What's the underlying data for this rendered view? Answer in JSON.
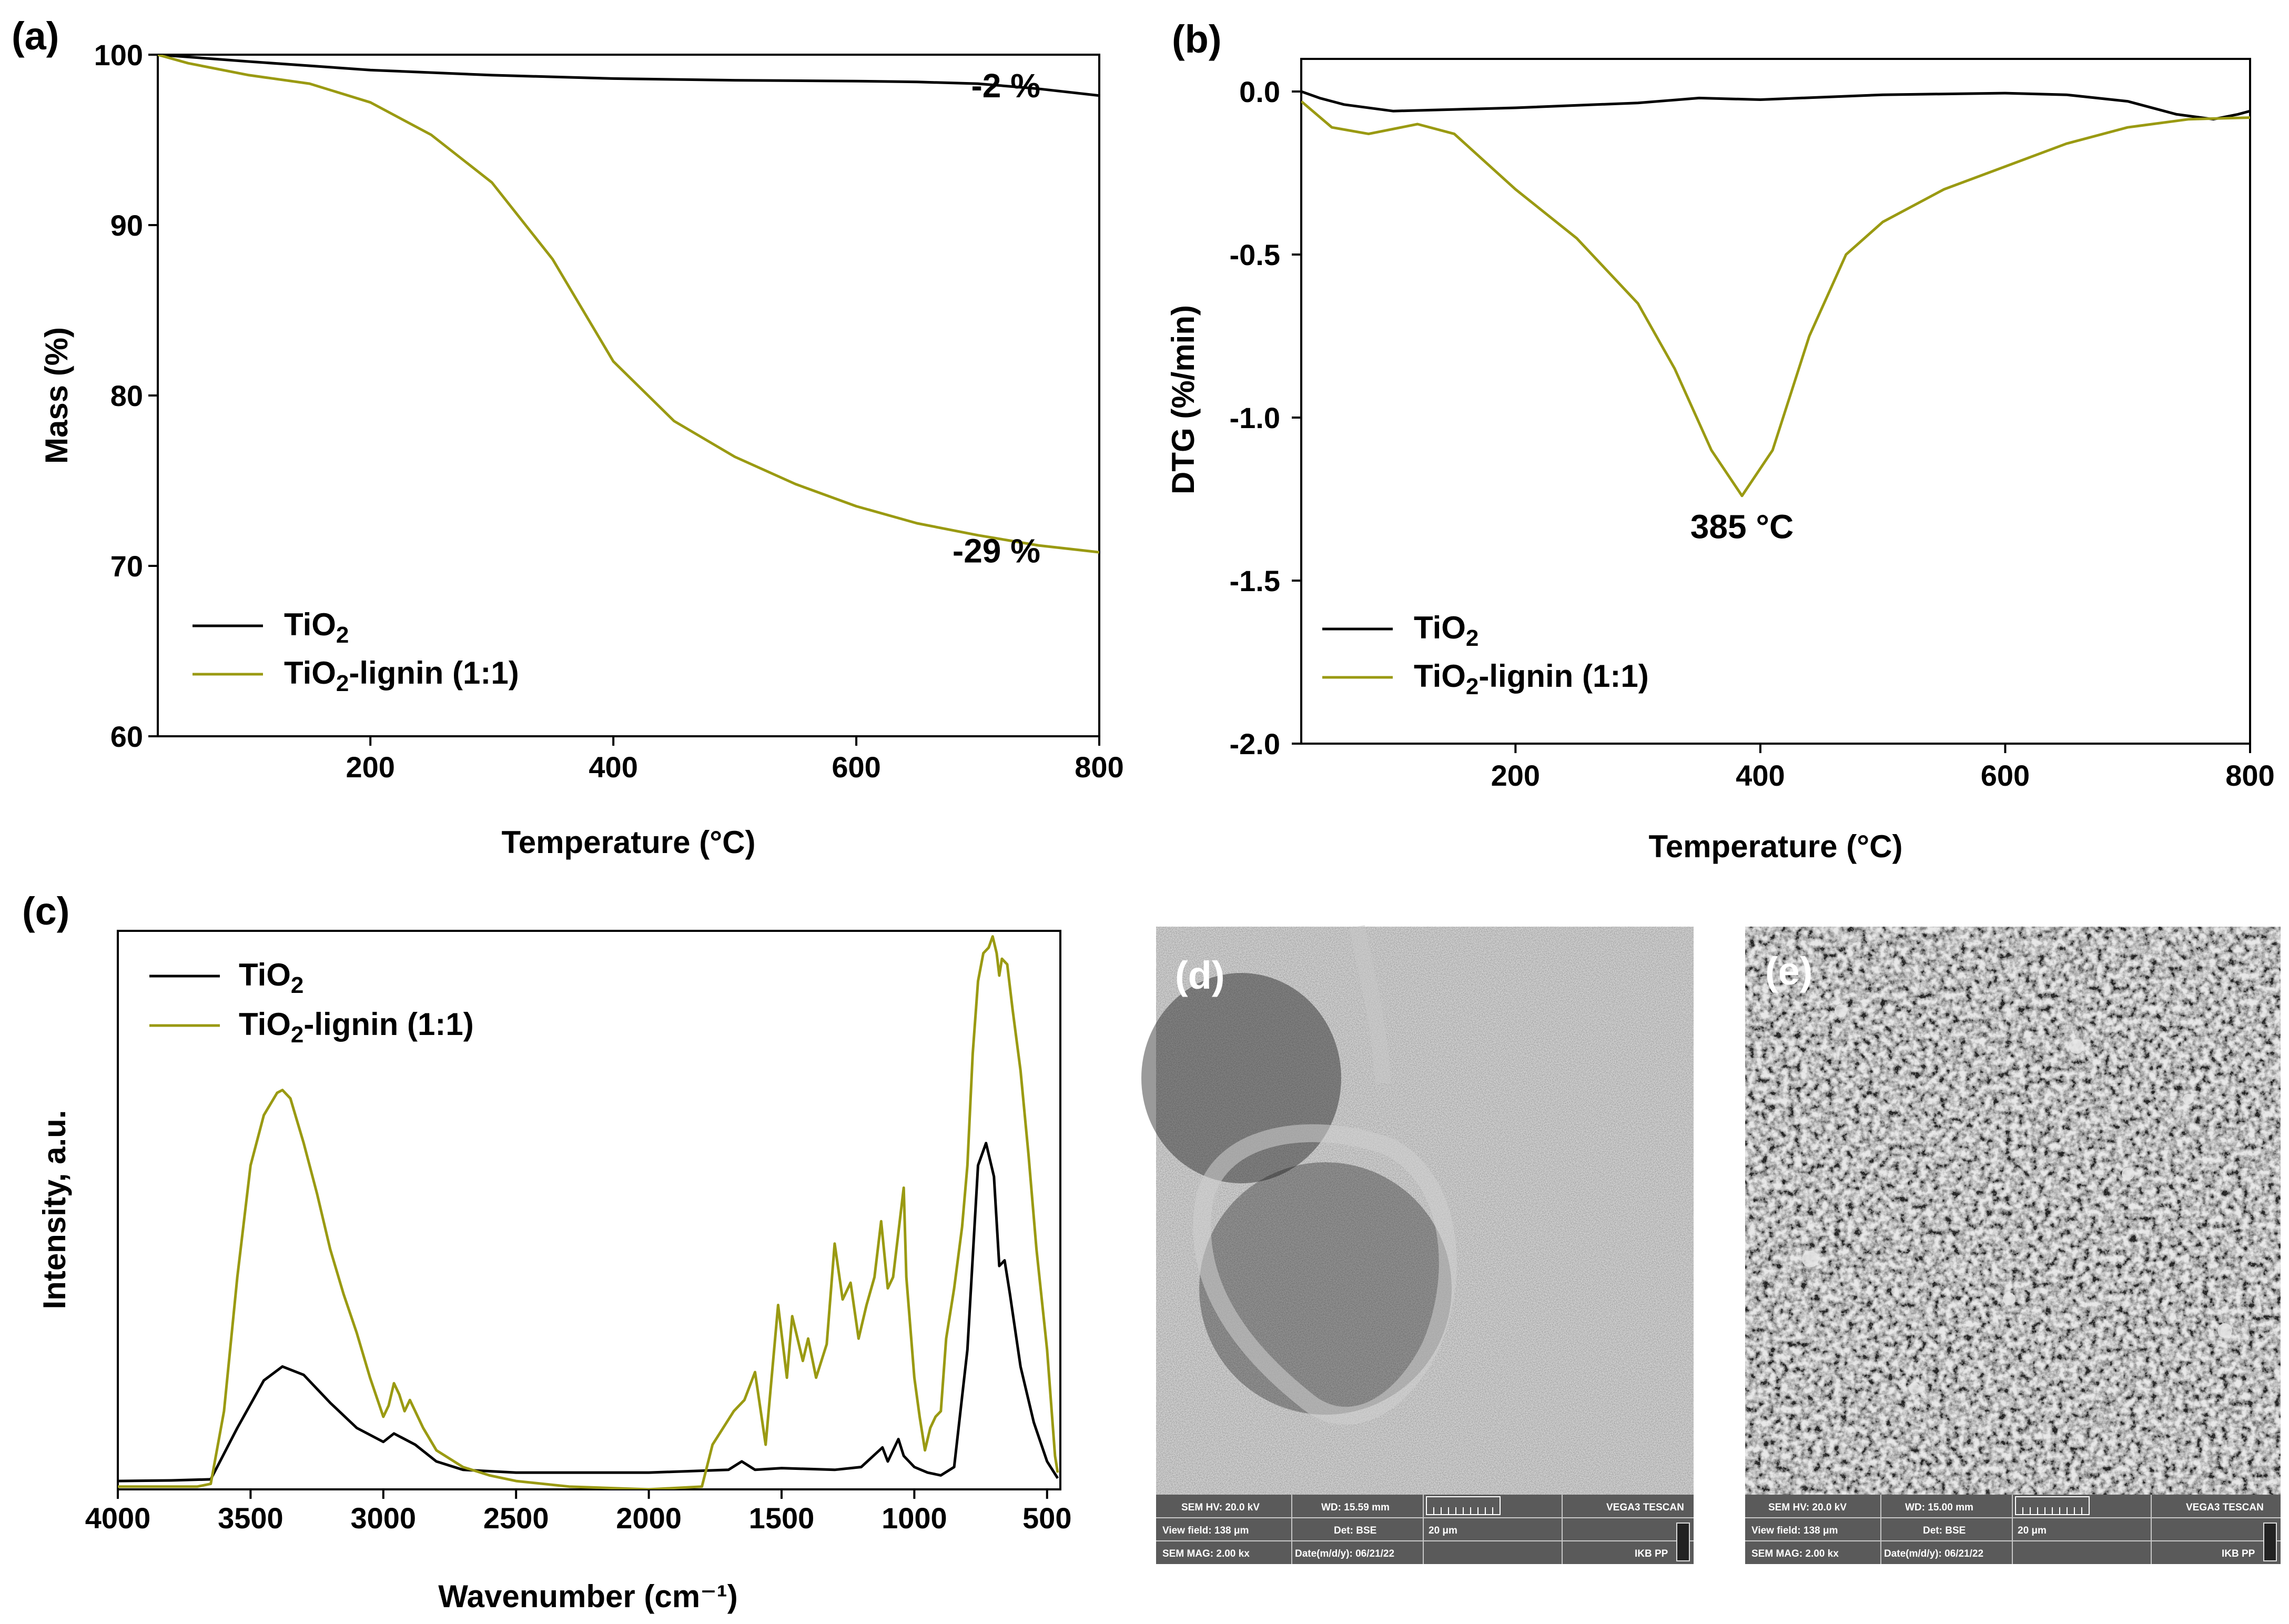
{
  "colors": {
    "tio2": "#000000",
    "lignin": "#9a9a12",
    "sem_bar": "#5a5a5a"
  },
  "chart_data": [
    {
      "id": "a",
      "panel": "(a)",
      "type": "line",
      "title": "",
      "xlabel": "Temperature (°C)",
      "ylabel": "Mass (%)",
      "xlim": [
        25,
        800
      ],
      "ylim": [
        60,
        100
      ],
      "xticks": [
        200,
        400,
        600,
        800
      ],
      "yticks": [
        60,
        70,
        80,
        90,
        100
      ],
      "xtick_labels": [
        "200",
        "400",
        "600",
        "800"
      ],
      "ytick_labels": [
        "60",
        "70",
        "80",
        "90",
        "100"
      ],
      "legend": [
        {
          "base": "TiO",
          "sub": "2",
          "rest": "",
          "series": "tio2"
        },
        {
          "base": "TiO",
          "sub": "2",
          "rest": "-lignin (1:1)",
          "series": "lignin"
        }
      ],
      "annotations": [
        {
          "text": "-2 %",
          "x": 755,
          "y": 97.5
        },
        {
          "text": "-29 %",
          "x": 755,
          "y": 70.2
        }
      ],
      "series": [
        {
          "name": "TiO2",
          "key": "tio2",
          "x": [
            25,
            100,
            200,
            300,
            400,
            500,
            600,
            650,
            700,
            750,
            800
          ],
          "y": [
            100,
            99.6,
            99.1,
            98.8,
            98.6,
            98.5,
            98.45,
            98.4,
            98.3,
            98.0,
            97.6
          ]
        },
        {
          "name": "TiO2-lignin (1:1)",
          "key": "lignin",
          "x": [
            25,
            50,
            100,
            150,
            200,
            250,
            300,
            350,
            400,
            450,
            500,
            550,
            600,
            650,
            700,
            750,
            800
          ],
          "y": [
            100,
            99.5,
            98.8,
            98.3,
            97.2,
            95.3,
            92.5,
            88.0,
            82.0,
            78.5,
            76.4,
            74.8,
            73.5,
            72.5,
            71.8,
            71.2,
            70.8
          ]
        }
      ]
    },
    {
      "id": "b",
      "panel": "(b)",
      "type": "line",
      "title": "",
      "xlabel": "Temperature (°C)",
      "ylabel": "DTG (%/min)",
      "xlim": [
        25,
        800
      ],
      "ylim": [
        -2.0,
        0.1
      ],
      "xticks": [
        200,
        400,
        600,
        800
      ],
      "yticks": [
        0.0,
        -0.5,
        -1.0,
        -1.5,
        -2.0
      ],
      "xtick_labels": [
        "200",
        "400",
        "600",
        "800"
      ],
      "ytick_labels": [
        "0.0",
        "-0.5",
        "-1.0",
        "-1.5",
        "-2.0"
      ],
      "legend": [
        {
          "base": "TiO",
          "sub": "2",
          "rest": "",
          "series": "tio2"
        },
        {
          "base": "TiO",
          "sub": "2",
          "rest": "-lignin (1:1)",
          "series": "lignin"
        }
      ],
      "annotations": [
        {
          "text": "385 °C",
          "x": 385,
          "y": -1.37
        }
      ],
      "series": [
        {
          "name": "TiO2",
          "key": "tio2",
          "x": [
            25,
            40,
            60,
            100,
            150,
            200,
            300,
            350,
            400,
            500,
            600,
            650,
            700,
            740,
            770,
            790,
            800
          ],
          "y": [
            0.0,
            -0.02,
            -0.04,
            -0.06,
            -0.055,
            -0.05,
            -0.035,
            -0.02,
            -0.025,
            -0.01,
            -0.005,
            -0.01,
            -0.03,
            -0.07,
            -0.085,
            -0.07,
            -0.06
          ]
        },
        {
          "name": "TiO2-lignin (1:1)",
          "key": "lignin",
          "x": [
            25,
            50,
            80,
            120,
            150,
            200,
            250,
            300,
            330,
            360,
            385,
            410,
            440,
            470,
            500,
            550,
            600,
            650,
            700,
            750,
            800
          ],
          "y": [
            -0.03,
            -0.11,
            -0.13,
            -0.1,
            -0.13,
            -0.3,
            -0.45,
            -0.65,
            -0.85,
            -1.1,
            -1.24,
            -1.1,
            -0.75,
            -0.5,
            -0.4,
            -0.3,
            -0.23,
            -0.16,
            -0.11,
            -0.085,
            -0.08
          ]
        }
      ]
    },
    {
      "id": "c",
      "panel": "(c)",
      "type": "line",
      "title": "",
      "xlabel": "Wavenumber (cm⁻¹)",
      "ylabel": "Intensity, a.u.",
      "xlim": [
        4000,
        450
      ],
      "ylim": [
        0,
        100
      ],
      "xticks": [
        4000,
        3500,
        3000,
        2500,
        2000,
        1500,
        1000,
        500
      ],
      "xtick_labels": [
        "4000",
        "3500",
        "3000",
        "2500",
        "2000",
        "1500",
        "1000",
        "500"
      ],
      "yticks": [],
      "ytick_labels": [],
      "legend": [
        {
          "base": "TiO",
          "sub": "2",
          "rest": "",
          "series": "tio2"
        },
        {
          "base": "TiO",
          "sub": "2",
          "rest": "-lignin (1:1)",
          "series": "lignin"
        }
      ],
      "annotations": [],
      "series": [
        {
          "name": "TiO2",
          "key": "tio2",
          "x": [
            4000,
            3800,
            3650,
            3550,
            3450,
            3380,
            3300,
            3200,
            3100,
            3000,
            2960,
            2920,
            2880,
            2800,
            2700,
            2500,
            2000,
            1700,
            1650,
            1600,
            1500,
            1300,
            1200,
            1120,
            1100,
            1060,
            1040,
            1000,
            950,
            900,
            850,
            800,
            760,
            730,
            700,
            680,
            660,
            640,
            600,
            550,
            500,
            460
          ],
          "y": [
            1.5,
            1.6,
            1.8,
            11,
            19.5,
            22,
            20.5,
            15.5,
            11,
            8.5,
            10,
            9,
            8,
            5,
            3.5,
            3,
            3,
            3.5,
            5,
            3.5,
            3.8,
            3.5,
            4,
            7.5,
            5,
            9,
            6,
            4,
            3,
            2.5,
            4,
            25,
            58,
            62,
            56,
            40,
            41,
            35,
            22,
            12,
            5,
            2
          ]
        },
        {
          "name": "TiO2-lignin (1:1)",
          "key": "lignin",
          "x": [
            4000,
            3800,
            3700,
            3650,
            3600,
            3550,
            3500,
            3450,
            3400,
            3380,
            3350,
            3300,
            3250,
            3200,
            3150,
            3100,
            3050,
            3000,
            2980,
            2960,
            2940,
            2920,
            2900,
            2880,
            2850,
            2800,
            2700,
            2600,
            2500,
            2300,
            2000,
            1800,
            1760,
            1720,
            1680,
            1640,
            1600,
            1560,
            1513,
            1480,
            1460,
            1420,
            1400,
            1370,
            1330,
            1300,
            1270,
            1240,
            1210,
            1180,
            1150,
            1125,
            1100,
            1080,
            1060,
            1040,
            1030,
            1000,
            980,
            960,
            940,
            920,
            900,
            880,
            850,
            820,
            800,
            780,
            760,
            740,
            720,
            705,
            690,
            680,
            670,
            650,
            630,
            600,
            570,
            540,
            500,
            470,
            460
          ],
          "y": [
            0.5,
            0.5,
            0.5,
            1,
            14,
            38,
            58,
            67,
            71,
            71.5,
            70,
            62,
            53,
            43,
            35,
            28,
            20,
            13,
            15,
            19,
            17,
            14,
            16,
            14,
            11,
            7,
            4,
            2.5,
            1.5,
            0.5,
            0,
            0.5,
            8,
            11,
            14,
            16,
            21,
            8,
            33,
            20,
            31,
            23,
            27,
            20,
            26,
            44,
            34,
            37,
            27,
            33,
            38,
            48,
            36,
            38,
            46,
            54,
            38,
            20,
            13,
            7,
            11,
            13,
            14,
            27,
            36,
            47,
            58,
            78,
            91,
            96,
            97,
            99,
            96,
            92,
            95,
            94,
            86,
            75,
            60,
            43,
            25,
            6,
            3
          ]
        }
      ]
    }
  ],
  "sem": [
    {
      "label": "(d)",
      "row1": [
        "SEM HV: 20.0 kV",
        "WD: 15.59 mm",
        "",
        "VEGA3 TESCAN"
      ],
      "row2": [
        "View field: 138 μm",
        "Det: BSE",
        "20 μm",
        ""
      ],
      "row3": [
        "SEM MAG: 2.00 kx",
        "Date(m/d/y): 06/21/22",
        "",
        "IKB PP"
      ]
    },
    {
      "label": "(e)",
      "row1": [
        "SEM HV: 20.0 kV",
        "WD: 15.00 mm",
        "",
        "VEGA3 TESCAN"
      ],
      "row2": [
        "View field: 138 μm",
        "Det: BSE",
        "20 μm",
        ""
      ],
      "row3": [
        "SEM MAG: 2.00 kx",
        "Date(m/d/y): 06/21/22",
        "",
        "IKB PP"
      ]
    }
  ]
}
